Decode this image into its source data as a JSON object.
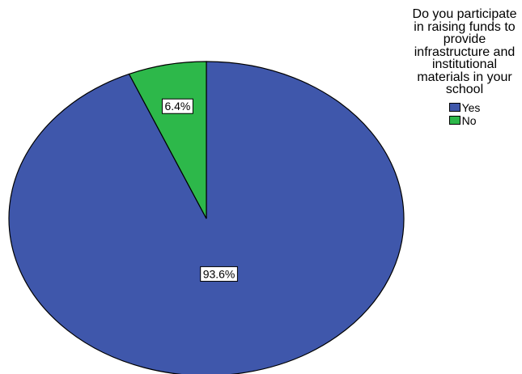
{
  "chart_data": {
    "type": "pie",
    "legend_title": "Do you participate in raising funds to provide infrastructure and institutional materials in your school",
    "legend_placement": "top-right",
    "slices": [
      {
        "name": "Yes",
        "value": 93.6,
        "label": "93.6%",
        "color": "#3f57ab"
      },
      {
        "name": "No",
        "value": 6.4,
        "label": "6.4%",
        "color": "#2db84a"
      }
    ]
  }
}
